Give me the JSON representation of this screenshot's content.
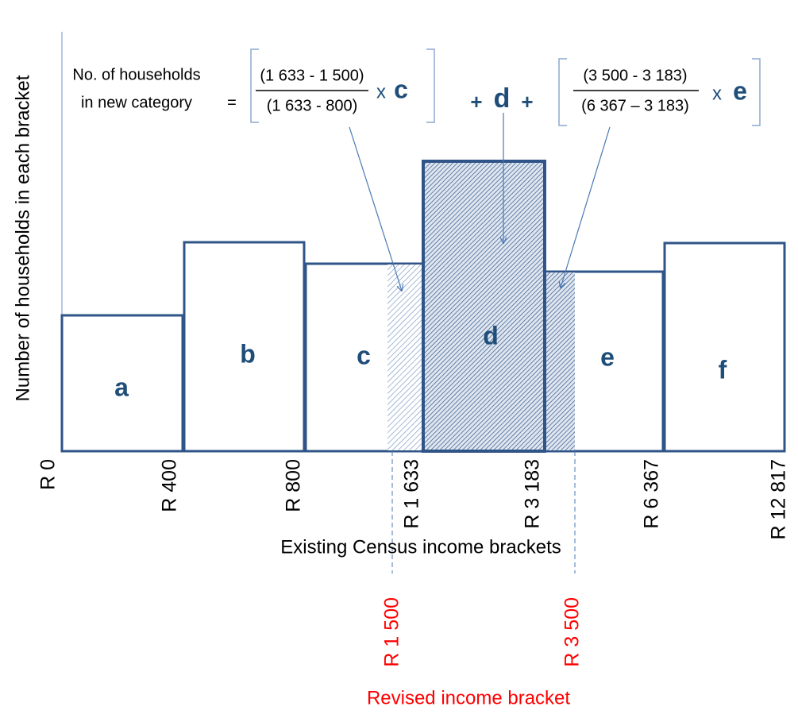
{
  "y_axis_label": "Number of households in each bracket",
  "formula": {
    "lhs": [
      "No. of households",
      "in new category"
    ],
    "equals": "=",
    "fraction_1": {
      "numerator": "(1 633 - 1 500)",
      "denominator": "(1 633 - 800)"
    },
    "times_1": "x",
    "var_1": "c",
    "plus_1": "+",
    "var_2": "d",
    "plus_2": "+",
    "fraction_2": {
      "numerator": "(3 500 - 3 183)",
      "denominator": "(6 367 – 3 183)"
    },
    "times_2": "x",
    "var_3": "e"
  },
  "bars": [
    "a",
    "b",
    "c",
    "d",
    "e",
    "f"
  ],
  "x_ticks": [
    "R 0",
    "R 400",
    "R 800",
    "R 1 633",
    "R 3 183",
    "R 6 367",
    "R 12 817"
  ],
  "x_axis_label": "Existing Census income brackets",
  "revised_ticks": [
    "R 1 500",
    "R 3 500"
  ],
  "revised_label": "Revised income bracket"
}
